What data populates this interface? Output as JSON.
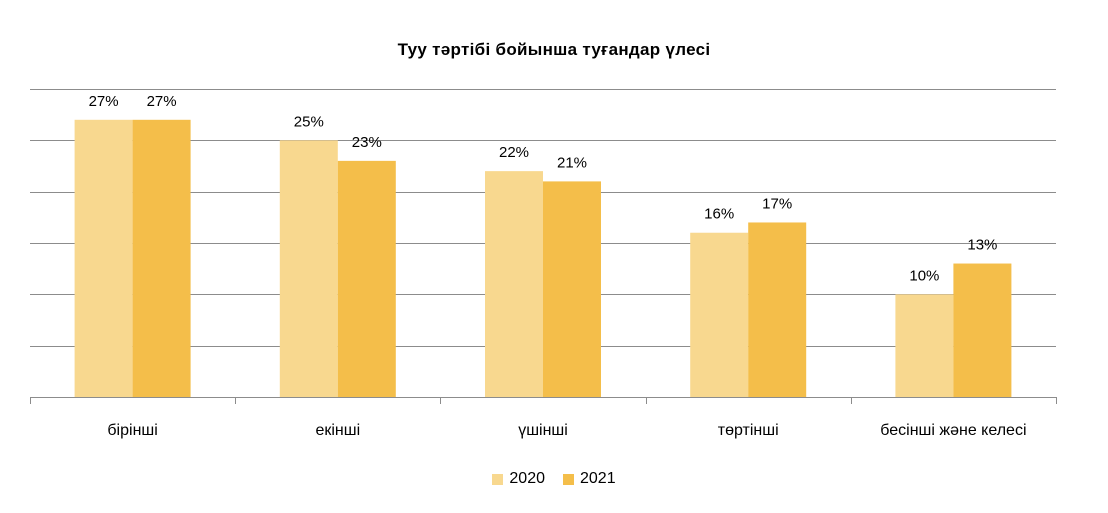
{
  "chart_data": {
    "type": "bar",
    "title": "Туу тәртібі бойынша туғандар үлесі",
    "categories": [
      "бірінші",
      "екінші",
      "үшінші",
      "төртінші",
      "бесінші және келесі"
    ],
    "series": [
      {
        "name": "2020",
        "values": [
          27,
          25,
          22,
          16,
          10
        ],
        "labels": [
          "27%",
          "25%",
          "22%",
          "16%",
          "10%"
        ],
        "color": "#F8D88F"
      },
      {
        "name": "2021",
        "values": [
          27,
          23,
          21,
          17,
          13
        ],
        "labels": [
          "27%",
          "23%",
          "21%",
          "17%",
          "13%"
        ],
        "color": "#F4BE4A"
      }
    ],
    "ylim": [
      0,
      30
    ],
    "grid": true,
    "y_tick_labels_shown": false,
    "legend_position": "bottom"
  }
}
